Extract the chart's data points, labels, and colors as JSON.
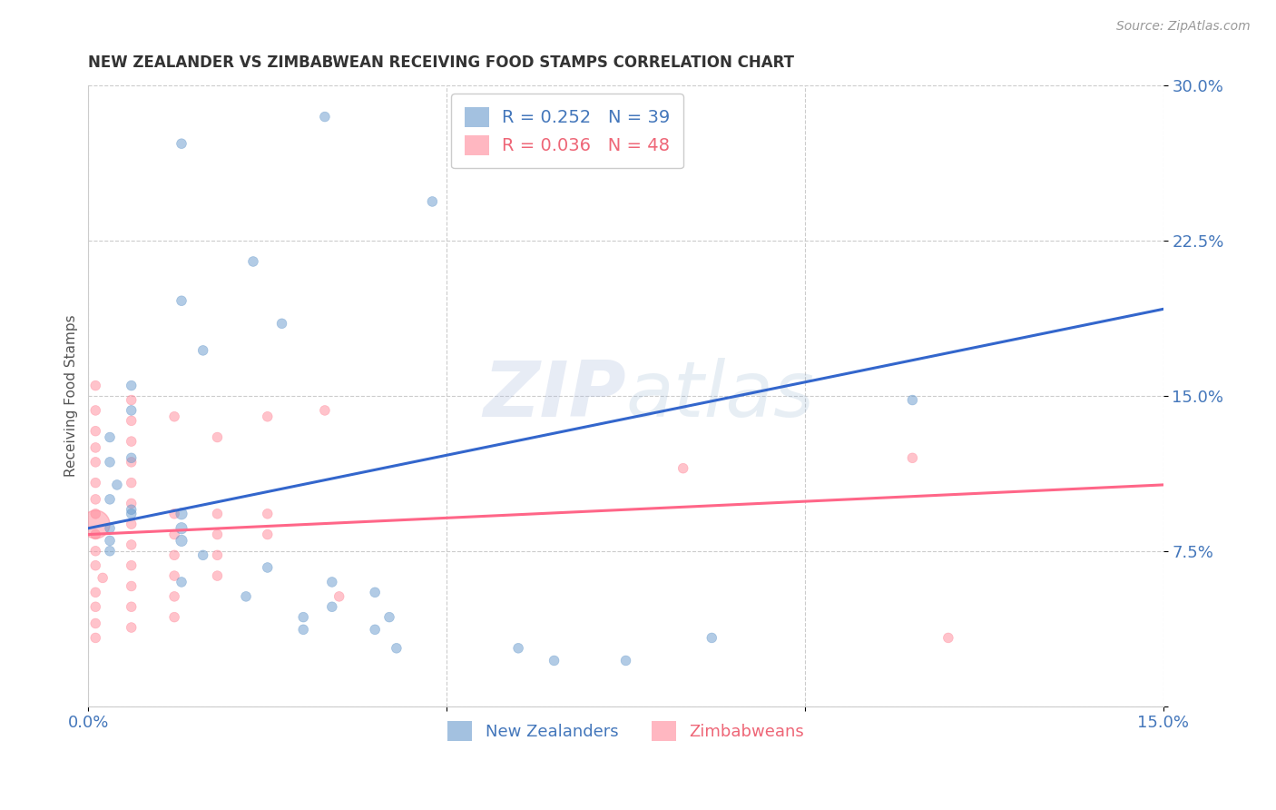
{
  "title": "NEW ZEALANDER VS ZIMBABWEAN RECEIVING FOOD STAMPS CORRELATION CHART",
  "source": "Source: ZipAtlas.com",
  "ylabel": "Receiving Food Stamps",
  "xlim": [
    0.0,
    0.15
  ],
  "ylim": [
    0.0,
    0.3
  ],
  "xticks": [
    0.0,
    0.05,
    0.1,
    0.15
  ],
  "yticks": [
    0.0,
    0.075,
    0.15,
    0.225,
    0.3
  ],
  "xtick_labels": [
    "0.0%",
    "",
    "",
    "15.0%"
  ],
  "ytick_labels": [
    "",
    "7.5%",
    "15.0%",
    "22.5%",
    "30.0%"
  ],
  "legend_blue_R": "R = 0.252",
  "legend_blue_N": "N = 39",
  "legend_pink_R": "R = 0.036",
  "legend_pink_N": "N = 48",
  "blue_color": "#6699CC",
  "pink_color": "#FF8899",
  "blue_line_color": "#3366CC",
  "pink_line_color": "#FF6688",
  "watermark": "ZIPatlas",
  "blue_trend_x": [
    0.0,
    0.15
  ],
  "blue_trend_y": [
    0.086,
    0.192
  ],
  "pink_trend_x": [
    0.0,
    0.15
  ],
  "pink_trend_y": [
    0.083,
    0.107
  ],
  "nz_points": [
    [
      0.013,
      0.272
    ],
    [
      0.033,
      0.285
    ],
    [
      0.048,
      0.244
    ],
    [
      0.023,
      0.215
    ],
    [
      0.013,
      0.196
    ],
    [
      0.027,
      0.185
    ],
    [
      0.016,
      0.172
    ],
    [
      0.006,
      0.155
    ],
    [
      0.006,
      0.143
    ],
    [
      0.003,
      0.13
    ],
    [
      0.003,
      0.118
    ],
    [
      0.004,
      0.107
    ],
    [
      0.003,
      0.1
    ],
    [
      0.115,
      0.148
    ],
    [
      0.006,
      0.095
    ],
    [
      0.006,
      0.12
    ],
    [
      0.003,
      0.086
    ],
    [
      0.003,
      0.08
    ],
    [
      0.003,
      0.075
    ],
    [
      0.006,
      0.093
    ],
    [
      0.013,
      0.093
    ],
    [
      0.013,
      0.086
    ],
    [
      0.013,
      0.08
    ],
    [
      0.016,
      0.073
    ],
    [
      0.025,
      0.067
    ],
    [
      0.013,
      0.06
    ],
    [
      0.022,
      0.053
    ],
    [
      0.034,
      0.048
    ],
    [
      0.034,
      0.06
    ],
    [
      0.04,
      0.055
    ],
    [
      0.03,
      0.043
    ],
    [
      0.03,
      0.037
    ],
    [
      0.04,
      0.037
    ],
    [
      0.042,
      0.043
    ],
    [
      0.043,
      0.028
    ],
    [
      0.06,
      0.028
    ],
    [
      0.065,
      0.022
    ],
    [
      0.075,
      0.022
    ],
    [
      0.087,
      0.033
    ]
  ],
  "nz_sizes": [
    60,
    60,
    60,
    60,
    60,
    60,
    60,
    60,
    60,
    60,
    60,
    60,
    60,
    60,
    60,
    60,
    60,
    60,
    60,
    60,
    80,
    80,
    80,
    60,
    60,
    60,
    60,
    60,
    60,
    60,
    60,
    60,
    60,
    60,
    60,
    60,
    60,
    60,
    60
  ],
  "zim_points": [
    [
      0.001,
      0.155
    ],
    [
      0.001,
      0.143
    ],
    [
      0.001,
      0.133
    ],
    [
      0.001,
      0.125
    ],
    [
      0.001,
      0.118
    ],
    [
      0.001,
      0.108
    ],
    [
      0.001,
      0.1
    ],
    [
      0.001,
      0.093
    ],
    [
      0.001,
      0.083
    ],
    [
      0.001,
      0.075
    ],
    [
      0.001,
      0.068
    ],
    [
      0.002,
      0.062
    ],
    [
      0.001,
      0.055
    ],
    [
      0.001,
      0.048
    ],
    [
      0.001,
      0.04
    ],
    [
      0.001,
      0.033
    ],
    [
      0.006,
      0.148
    ],
    [
      0.006,
      0.138
    ],
    [
      0.006,
      0.128
    ],
    [
      0.006,
      0.118
    ],
    [
      0.006,
      0.108
    ],
    [
      0.006,
      0.098
    ],
    [
      0.006,
      0.088
    ],
    [
      0.006,
      0.078
    ],
    [
      0.006,
      0.068
    ],
    [
      0.006,
      0.058
    ],
    [
      0.006,
      0.048
    ],
    [
      0.006,
      0.038
    ],
    [
      0.012,
      0.14
    ],
    [
      0.012,
      0.093
    ],
    [
      0.012,
      0.083
    ],
    [
      0.012,
      0.073
    ],
    [
      0.012,
      0.063
    ],
    [
      0.012,
      0.053
    ],
    [
      0.012,
      0.043
    ],
    [
      0.018,
      0.13
    ],
    [
      0.018,
      0.093
    ],
    [
      0.018,
      0.083
    ],
    [
      0.018,
      0.073
    ],
    [
      0.018,
      0.063
    ],
    [
      0.025,
      0.14
    ],
    [
      0.025,
      0.093
    ],
    [
      0.025,
      0.083
    ],
    [
      0.033,
      0.143
    ],
    [
      0.035,
      0.053
    ],
    [
      0.083,
      0.115
    ],
    [
      0.115,
      0.12
    ],
    [
      0.12,
      0.033
    ]
  ],
  "zim_sizes": [
    60,
    60,
    60,
    60,
    60,
    60,
    60,
    60,
    60,
    60,
    60,
    60,
    60,
    60,
    60,
    60,
    60,
    60,
    60,
    60,
    60,
    60,
    60,
    60,
    60,
    60,
    60,
    60,
    60,
    60,
    60,
    60,
    60,
    60,
    60,
    60,
    60,
    60,
    60,
    60,
    60,
    60,
    60,
    60,
    60,
    60,
    60,
    60
  ],
  "zim_big_point": [
    0.001,
    0.088
  ],
  "zim_big_size": 500
}
